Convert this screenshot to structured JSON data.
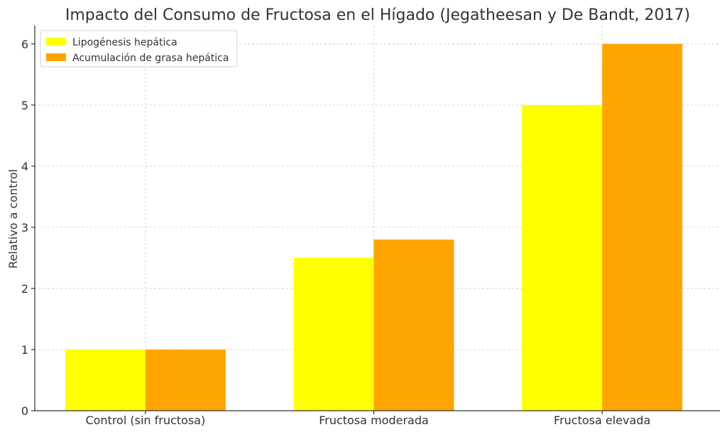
{
  "chart_data": {
    "type": "bar",
    "title": "Impacto del Consumo de Fructosa en el Hígado (Jegatheesan y De Bandt, 2017)",
    "xlabel": "",
    "ylabel": "Relativo a control",
    "categories": [
      "Control (sin fructosa)",
      "Fructosa moderada",
      "Fructosa elevada"
    ],
    "series": [
      {
        "name": "Lipogénesis hepática",
        "values": [
          1,
          2.5,
          5
        ],
        "color": "#ffff00"
      },
      {
        "name": "Acumulación de grasa hepática",
        "values": [
          1,
          2.8,
          6
        ],
        "color": "#ffa500"
      }
    ],
    "ylim": [
      0,
      6.3
    ],
    "yticks": [
      "0",
      "1",
      "2",
      "3",
      "4",
      "5",
      "6"
    ],
    "grid": true,
    "legend_position": "top-left"
  }
}
